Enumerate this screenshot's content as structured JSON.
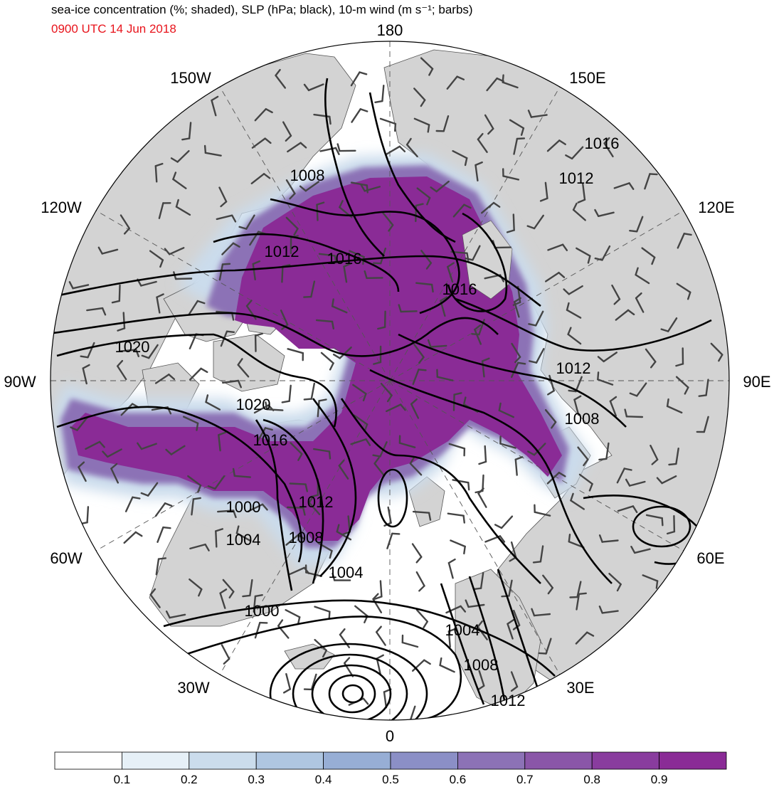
{
  "header": {
    "title": "sea-ice concentration (%; shaded), SLP (hPa; black), 10-m wind (m s⁻¹; barbs)",
    "subtitle": "0900 UTC 14 Jun 2018",
    "subtitle_color": "#e8141c"
  },
  "longitude_labels": [
    "180",
    "150E",
    "120E",
    "90E",
    "60E",
    "30E",
    "0",
    "30W",
    "60W",
    "90W",
    "120W",
    "150W"
  ],
  "slp_contour_labels": [
    "1016",
    "1012",
    "1008",
    "1012",
    "1016",
    "1016",
    "1020",
    "1020",
    "1016",
    "1012",
    "1008",
    "1012",
    "1000",
    "1004",
    "1008",
    "1004",
    "1000",
    "1004",
    "1008",
    "1012"
  ],
  "colorbar": {
    "ticks": [
      "0.1",
      "0.2",
      "0.3",
      "0.4",
      "0.5",
      "0.6",
      "0.7",
      "0.8",
      "0.9"
    ],
    "colors": [
      "#ffffff",
      "#e6f0f7",
      "#cbdcec",
      "#afc6e1",
      "#97aed5",
      "#8b8fc6",
      "#8c72b6",
      "#8a56a8",
      "#893c9e",
      "#8a2b96"
    ]
  },
  "colors": {
    "land": "#d3d3d3",
    "ocean": "#ffffff",
    "ice_high": "#8a2b96",
    "ice_mid": "#8b8fc6",
    "ice_low": "#cbdcec"
  }
}
